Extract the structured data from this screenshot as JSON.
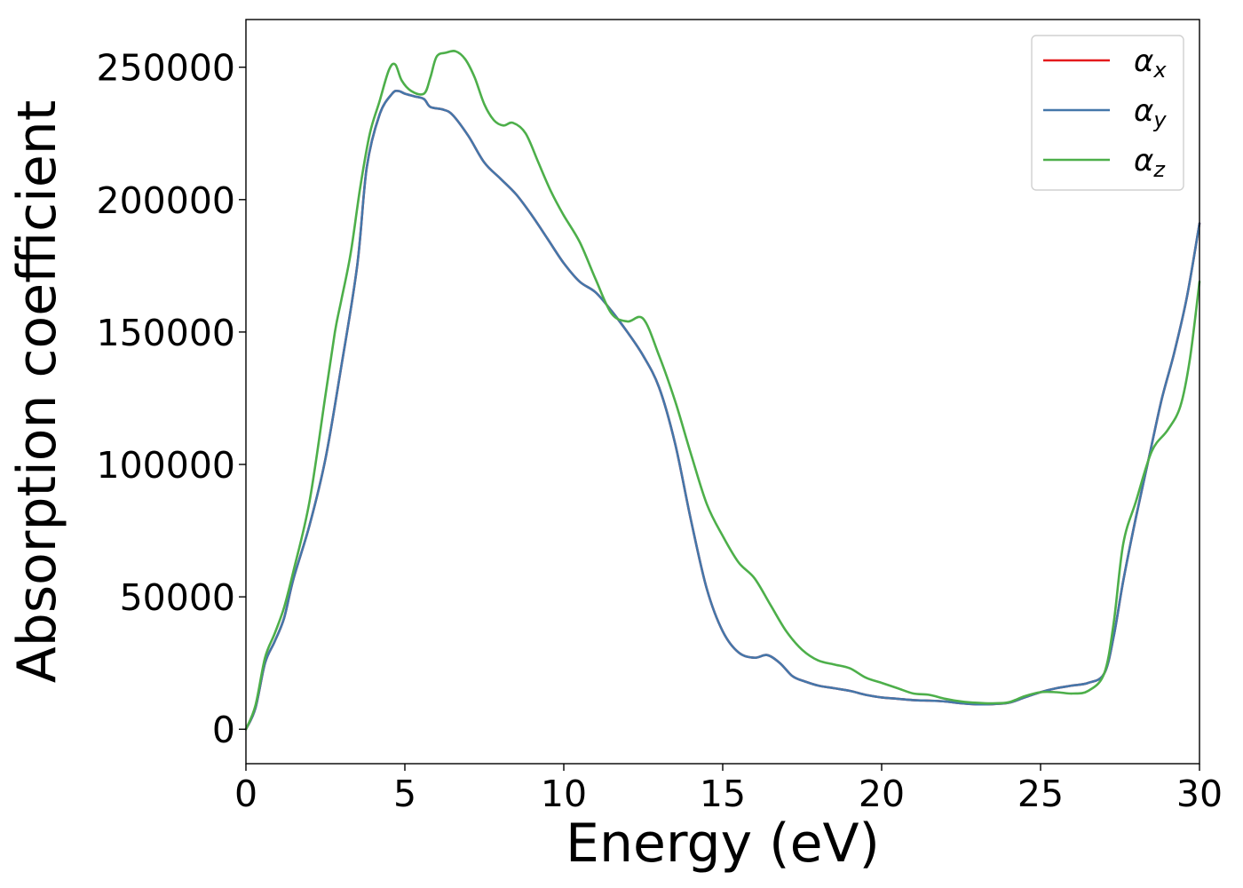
{
  "chart_data": {
    "type": "line",
    "title": "",
    "xlabel": "Energy (eV)",
    "ylabel": "Absorption coefficient",
    "xlim": [
      0,
      30
    ],
    "ylim": [
      -13000,
      268000
    ],
    "xticks": [
      0,
      5,
      10,
      15,
      20,
      25,
      30
    ],
    "xtick_labels": [
      "0",
      "5",
      "10",
      "15",
      "20",
      "25",
      "30"
    ],
    "yticks": [
      0,
      50000,
      100000,
      150000,
      200000,
      250000
    ],
    "ytick_labels": [
      "0",
      "50000",
      "100000",
      "150000",
      "200000",
      "250000"
    ],
    "grid": false,
    "legend_position": "top-right",
    "series": [
      {
        "name": "αx",
        "symbol": "α",
        "subscript": "x",
        "color": "#e41a1c",
        "x": [
          0,
          0.3,
          0.6,
          0.9,
          1.2,
          1.5,
          2,
          2.5,
          3,
          3.5,
          3.8,
          4.2,
          4.6,
          4.8,
          5.0,
          5.3,
          5.6,
          5.8,
          6.2,
          6.5,
          7.0,
          7.5,
          8.0,
          8.5,
          9.0,
          9.5,
          10.0,
          10.5,
          11.0,
          11.5,
          12.0,
          12.5,
          13.0,
          13.5,
          14.0,
          14.5,
          15.0,
          15.5,
          16.0,
          16.4,
          16.8,
          17.2,
          17.6,
          18.0,
          18.5,
          19.0,
          19.5,
          20.0,
          20.5,
          21.0,
          21.5,
          22.0,
          22.5,
          23.0,
          23.5,
          24.0,
          24.5,
          25.0,
          25.5,
          26.0,
          26.5,
          27.0,
          27.3,
          27.6,
          28.0,
          28.4,
          28.8,
          29.2,
          29.6,
          30.0
        ],
        "values": [
          0,
          8000,
          25000,
          33000,
          42000,
          57000,
          77000,
          102000,
          137000,
          175000,
          212000,
          232000,
          240000,
          241000,
          240000,
          239000,
          238000,
          235000,
          234000,
          232000,
          224000,
          214000,
          208000,
          202000,
          194000,
          185000,
          176000,
          169000,
          165000,
          158000,
          150000,
          141000,
          129000,
          108000,
          79000,
          53000,
          37000,
          29000,
          27000,
          28000,
          25000,
          20000,
          18000,
          16500,
          15500,
          14500,
          13000,
          12000,
          11500,
          11000,
          10800,
          10500,
          9800,
          9400,
          9500,
          10000,
          12000,
          14000,
          15500,
          16500,
          17500,
          21000,
          35000,
          56000,
          80000,
          102000,
          124000,
          142000,
          163000,
          191000
        ]
      },
      {
        "name": "αy",
        "symbol": "α",
        "subscript": "y",
        "color": "#4477aa",
        "x": [
          0,
          0.3,
          0.6,
          0.9,
          1.2,
          1.5,
          2,
          2.5,
          3,
          3.5,
          3.8,
          4.2,
          4.6,
          4.8,
          5.0,
          5.3,
          5.6,
          5.8,
          6.2,
          6.5,
          7.0,
          7.5,
          8.0,
          8.5,
          9.0,
          9.5,
          10.0,
          10.5,
          11.0,
          11.5,
          12.0,
          12.5,
          13.0,
          13.5,
          14.0,
          14.5,
          15.0,
          15.5,
          16.0,
          16.4,
          16.8,
          17.2,
          17.6,
          18.0,
          18.5,
          19.0,
          19.5,
          20.0,
          20.5,
          21.0,
          21.5,
          22.0,
          22.5,
          23.0,
          23.5,
          24.0,
          24.5,
          25.0,
          25.5,
          26.0,
          26.5,
          27.0,
          27.3,
          27.6,
          28.0,
          28.4,
          28.8,
          29.2,
          29.6,
          30.0
        ],
        "values": [
          0,
          8000,
          25000,
          33000,
          42000,
          57000,
          77000,
          102000,
          137000,
          175000,
          212000,
          232000,
          240000,
          241000,
          240000,
          239000,
          238000,
          235000,
          234000,
          232000,
          224000,
          214000,
          208000,
          202000,
          194000,
          185000,
          176000,
          169000,
          165000,
          158000,
          150000,
          141000,
          129000,
          108000,
          79000,
          53000,
          37000,
          29000,
          27000,
          28000,
          25000,
          20000,
          18000,
          16500,
          15500,
          14500,
          13000,
          12000,
          11500,
          11000,
          10800,
          10500,
          9800,
          9400,
          9500,
          10000,
          12000,
          14000,
          15500,
          16500,
          17500,
          21000,
          35000,
          56000,
          80000,
          102000,
          124000,
          142000,
          163000,
          191000
        ]
      },
      {
        "name": "αz",
        "symbol": "α",
        "subscript": "z",
        "color": "#4daf4a",
        "x": [
          0,
          0.3,
          0.6,
          0.9,
          1.2,
          1.5,
          2,
          2.5,
          2.8,
          3.0,
          3.3,
          3.6,
          3.9,
          4.2,
          4.5,
          4.7,
          4.9,
          5.2,
          5.6,
          5.8,
          6.0,
          6.3,
          6.6,
          6.9,
          7.2,
          7.5,
          7.8,
          8.1,
          8.4,
          8.8,
          9.2,
          9.6,
          10.0,
          10.5,
          11.0,
          11.5,
          12.0,
          12.5,
          13.0,
          13.5,
          14.0,
          14.5,
          15.0,
          15.5,
          16.0,
          16.5,
          17.0,
          17.5,
          18.0,
          18.5,
          19.0,
          19.5,
          20.0,
          20.5,
          21.0,
          21.5,
          22.0,
          22.5,
          23.0,
          23.5,
          24.0,
          24.5,
          25.0,
          25.5,
          26.0,
          26.5,
          27.0,
          27.3,
          27.6,
          28.0,
          28.5,
          29.0,
          29.4,
          29.7,
          30.0
        ],
        "values": [
          0,
          9000,
          27000,
          36000,
          46000,
          60000,
          86000,
          126000,
          150000,
          162000,
          180000,
          205000,
          225000,
          237000,
          249000,
          251000,
          245000,
          241000,
          240000,
          246000,
          254000,
          255500,
          256000,
          253000,
          246000,
          236000,
          230000,
          228000,
          229000,
          225000,
          214000,
          203000,
          194000,
          184000,
          170000,
          157000,
          154000,
          155000,
          141000,
          124000,
          104000,
          85000,
          73000,
          63000,
          57000,
          47000,
          37000,
          30000,
          26000,
          24500,
          23000,
          19500,
          17500,
          15500,
          13500,
          13000,
          11500,
          10500,
          10000,
          9800,
          10200,
          12500,
          14000,
          14000,
          13500,
          14500,
          21000,
          40000,
          70000,
          86000,
          105000,
          113000,
          122000,
          140000,
          169000
        ]
      }
    ]
  }
}
